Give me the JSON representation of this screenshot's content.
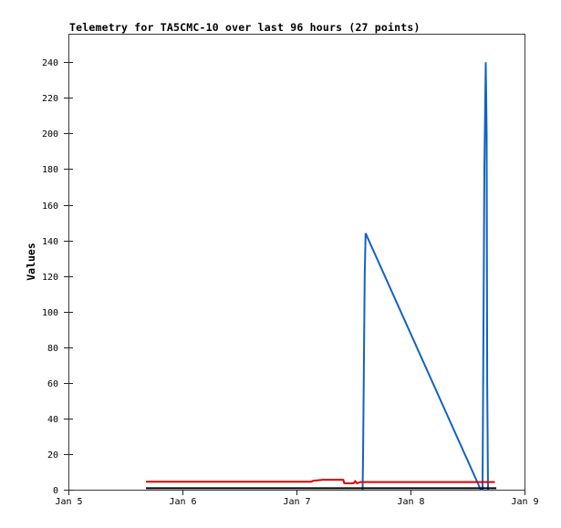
{
  "title": "Telemetry for TA5CMC-10 over last 96 hours (27 points)",
  "colors": {
    "background": "#ffffff",
    "border": "#3a3a3a",
    "tick": "#222222",
    "text": "#000000",
    "series_blue": "#1262c4",
    "series_red": "#e00000",
    "series_black": "#000000"
  },
  "chart_data": {
    "type": "line",
    "title": "Telemetry for TA5CMC-10 over last 96 hours (27 points)",
    "xlabel": "",
    "ylabel": "Values",
    "point_count_label": "27 points",
    "window_label": "last 96 hours",
    "device_label": "TA5CMC-10",
    "grid": false,
    "legend_position": "none",
    "x_unit": "days since Jan 5 00:00",
    "xlim": [
      0,
      4
    ],
    "ylim": [
      0,
      256
    ],
    "x_ticks": [
      {
        "pos": 0,
        "label": "Jan 5"
      },
      {
        "pos": 1,
        "label": "Jan 6"
      },
      {
        "pos": 2,
        "label": "Jan 7"
      },
      {
        "pos": 3,
        "label": "Jan 8"
      },
      {
        "pos": 4,
        "label": "Jan 9"
      }
    ],
    "y_ticks": [
      0,
      20,
      40,
      60,
      80,
      100,
      120,
      140,
      160,
      180,
      200,
      220,
      240
    ],
    "series": [
      {
        "name": "blue",
        "color": "#1262c4",
        "stroke_width": 2,
        "points": [
          [
            2.58,
            0
          ],
          [
            2.585,
            23
          ],
          [
            2.598,
            120
          ],
          [
            2.606,
            144
          ],
          [
            3.616,
            0
          ],
          [
            3.632,
            0
          ],
          [
            3.648,
            180
          ],
          [
            3.66,
            240
          ],
          [
            3.668,
            200
          ],
          [
            3.673,
            60
          ],
          [
            3.68,
            0
          ]
        ]
      },
      {
        "name": "red",
        "color": "#e00000",
        "stroke_width": 2,
        "points": [
          [
            0.68,
            4.5
          ],
          [
            2.13,
            4.5
          ],
          [
            2.145,
            5.0
          ],
          [
            2.23,
            5.6
          ],
          [
            2.41,
            5.6
          ],
          [
            2.42,
            3.6
          ],
          [
            2.5,
            3.6
          ],
          [
            2.515,
            4.8
          ],
          [
            2.53,
            3.6
          ],
          [
            2.56,
            4.3
          ],
          [
            3.74,
            4.3
          ]
        ]
      },
      {
        "name": "black",
        "color": "#000000",
        "stroke_width": 2,
        "points": [
          [
            0.68,
            0.8
          ],
          [
            3.752,
            0.8
          ]
        ]
      }
    ]
  }
}
